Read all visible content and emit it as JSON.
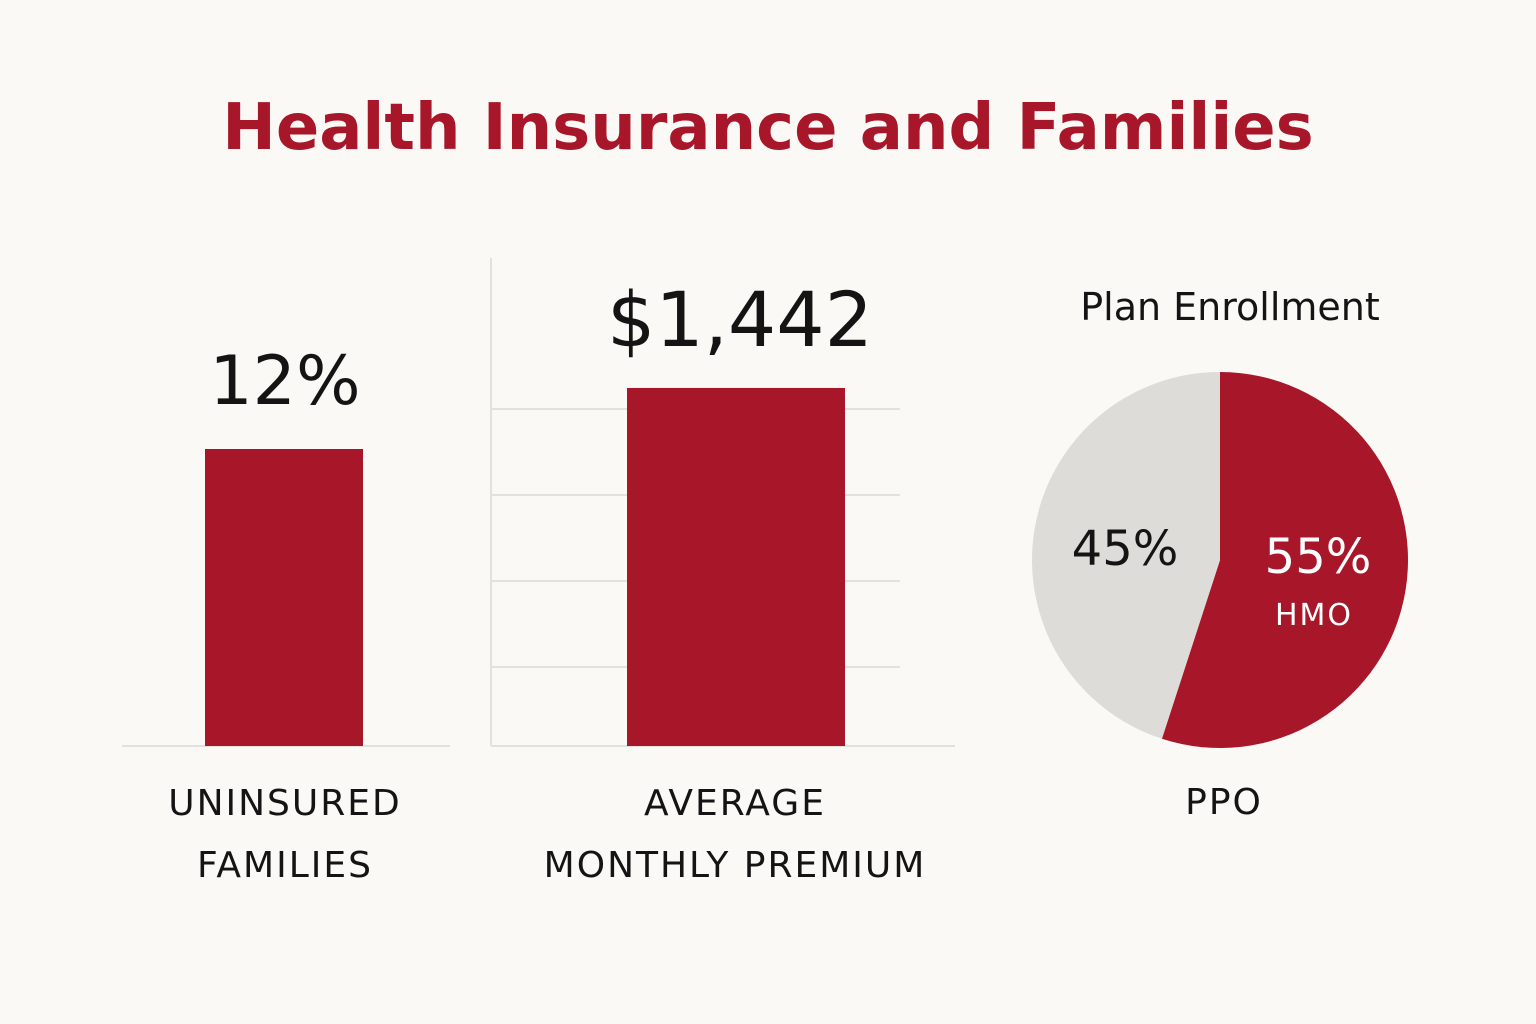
{
  "title": "Health Insurance and Families",
  "colors": {
    "accent": "#a8162a",
    "pie_light": "#dddcd8",
    "text": "#141414",
    "grid": "#e3e1dc",
    "background": "#fbf9f5"
  },
  "chart_data": [
    {
      "type": "bar",
      "title": "",
      "categories": [
        "UNINSURED FAMILIES"
      ],
      "category_lines": [
        "UNINSURED",
        "FAMILIES"
      ],
      "values": [
        12
      ],
      "value_label": "12%",
      "unit": "%"
    },
    {
      "type": "bar",
      "title": "",
      "categories": [
        "AVERAGE MONTHLY PREMIUM"
      ],
      "category_lines": [
        "AVERAGE",
        "MONTHLY PREMIUM"
      ],
      "values": [
        1442
      ],
      "value_label": "$1,442",
      "unit": "$",
      "grid": true
    },
    {
      "type": "pie",
      "title": "Plan Enrollment",
      "slices": [
        {
          "name": "HMO",
          "value": 55,
          "label": "55%"
        },
        {
          "name": "PPO",
          "value": 45,
          "label": "45%"
        }
      ],
      "footer_label": "PPO"
    }
  ]
}
